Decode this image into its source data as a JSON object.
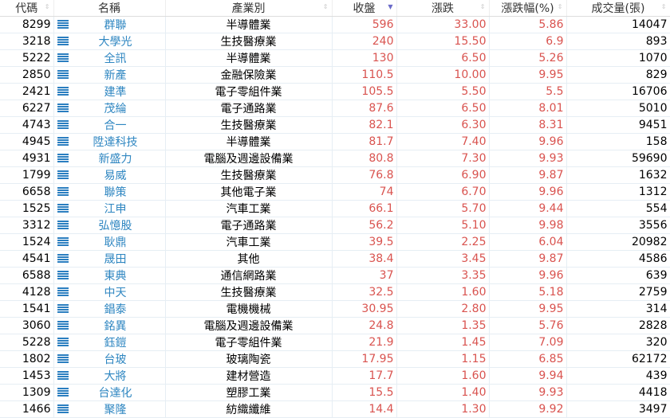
{
  "headers": [
    "代碼",
    "名稱",
    "產業別",
    "收盤",
    "漲跌",
    "漲跌幅(%)",
    "成交量(張)"
  ],
  "sort_column": "收盤",
  "colors": {
    "price": "#d9534f",
    "name": "#2e86c1",
    "icon": "#2a7ec0"
  },
  "row_icon": "list-icon",
  "rows": [
    [
      "8299",
      "群聯",
      "半導體業",
      "596",
      "33.00",
      "5.86",
      "14047"
    ],
    [
      "3218",
      "大學光",
      "生技醫療業",
      "240",
      "15.50",
      "6.9",
      "893"
    ],
    [
      "5222",
      "全訊",
      "半導體業",
      "130",
      "6.50",
      "5.26",
      "1070"
    ],
    [
      "2850",
      "新產",
      "金融保險業",
      "110.5",
      "10.00",
      "9.95",
      "829"
    ],
    [
      "2421",
      "建準",
      "電子零組件業",
      "105.5",
      "5.50",
      "5.5",
      "16706"
    ],
    [
      "6227",
      "茂綸",
      "電子通路業",
      "87.6",
      "6.50",
      "8.01",
      "5010"
    ],
    [
      "4743",
      "合一",
      "生技醫療業",
      "82.1",
      "6.30",
      "8.31",
      "9451"
    ],
    [
      "4945",
      "陞達科技",
      "半導體業",
      "81.7",
      "7.40",
      "9.96",
      "158"
    ],
    [
      "4931",
      "新盛力",
      "電腦及週邊設備業",
      "80.8",
      "7.30",
      "9.93",
      "59690"
    ],
    [
      "1799",
      "易威",
      "生技醫療業",
      "76.8",
      "6.90",
      "9.87",
      "1632"
    ],
    [
      "6658",
      "聯策",
      "其他電子業",
      "74",
      "6.70",
      "9.96",
      "1312"
    ],
    [
      "1525",
      "江申",
      "汽車工業",
      "66.1",
      "5.70",
      "9.44",
      "554"
    ],
    [
      "3312",
      "弘憶股",
      "電子通路業",
      "56.2",
      "5.10",
      "9.98",
      "3556"
    ],
    [
      "1524",
      "耿鼎",
      "汽車工業",
      "39.5",
      "2.25",
      "6.04",
      "20982"
    ],
    [
      "4541",
      "晟田",
      "其他",
      "38.4",
      "3.45",
      "9.87",
      "4586"
    ],
    [
      "6588",
      "東典",
      "通信網路業",
      "37",
      "3.35",
      "9.96",
      "639"
    ],
    [
      "4128",
      "中天",
      "生技醫療業",
      "32.5",
      "1.60",
      "5.18",
      "2759"
    ],
    [
      "1541",
      "錩泰",
      "電機機械",
      "30.95",
      "2.80",
      "9.95",
      "314"
    ],
    [
      "3060",
      "銘異",
      "電腦及週邊設備業",
      "24.8",
      "1.35",
      "5.76",
      "2828"
    ],
    [
      "5228",
      "鈺鎧",
      "電子零組件業",
      "21.9",
      "1.45",
      "7.09",
      "320"
    ],
    [
      "1802",
      "台玻",
      "玻璃陶瓷",
      "17.95",
      "1.15",
      "6.85",
      "62172"
    ],
    [
      "1453",
      "大將",
      "建材營造",
      "17.7",
      "1.60",
      "9.94",
      "439"
    ],
    [
      "1309",
      "台達化",
      "塑膠工業",
      "15.5",
      "1.40",
      "9.93",
      "4418"
    ],
    [
      "1466",
      "聚隆",
      "紡織纖維",
      "14.4",
      "1.30",
      "9.92",
      "3497"
    ]
  ]
}
